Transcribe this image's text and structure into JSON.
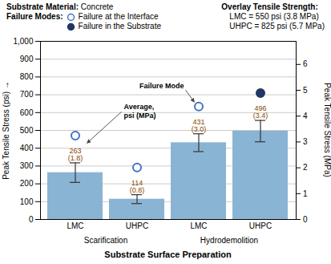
{
  "chart_data": {
    "type": "bar",
    "header": {
      "substrate": {
        "label": "Substrate Material:",
        "text": "Concrete"
      },
      "overlay": {
        "label": "Overlay Tensile Strength:",
        "lines": [
          "LMC = 550 psi (3.8 MPa)",
          "UHPC = 825 psi (5.7 MPa)"
        ]
      }
    },
    "failure_legend": {
      "title": "Failure Modes:",
      "entries": [
        {
          "name": "Failure at the Interface",
          "color": "#4472c4",
          "marker": "open"
        },
        {
          "name": "Failure in the Substrate",
          "color": "#1f3864",
          "marker": "filled"
        }
      ]
    },
    "categories": [
      "LMC",
      "UHPC",
      "LMC",
      "UHPC"
    ],
    "groups": [
      "Scarification",
      "Scarification",
      "Hydrodemolition",
      "Hydrodemolition"
    ],
    "values": [
      263,
      114,
      431,
      496
    ],
    "errors": [
      55,
      25,
      50,
      60
    ],
    "data_labels": true,
    "value_labels": [
      "263\n(1.8)",
      "114\n(0.8)",
      "431\n(3.0)",
      "496\n(3.4)"
    ],
    "label_color": "#8B4500",
    "failure": [
      "Failure at the Interface",
      "Failure at the Interface",
      "Failure at the Interface",
      "Failure in the Substrate"
    ],
    "color": "#8ab4d4",
    "xlabel": "Substrate Surface Preparation",
    "ylabel": "Peak Tensile Stress (psi)",
    "y2label": "Peak Tensile Stress (MPa)",
    "ylim": [
      0,
      1000
    ],
    "yticks": [
      0,
      100,
      200,
      300,
      400,
      500,
      600,
      700,
      800,
      900,
      {
        "value": 1000,
        "label": "1,000"
      }
    ],
    "y2lim": [
      0,
      6.894
    ],
    "y2ticks": [
      0,
      1,
      2,
      3,
      4,
      5,
      6
    ],
    "grid": true,
    "annotations": [
      "Average,\npsi (MPa)",
      "Failure Mode"
    ]
  }
}
